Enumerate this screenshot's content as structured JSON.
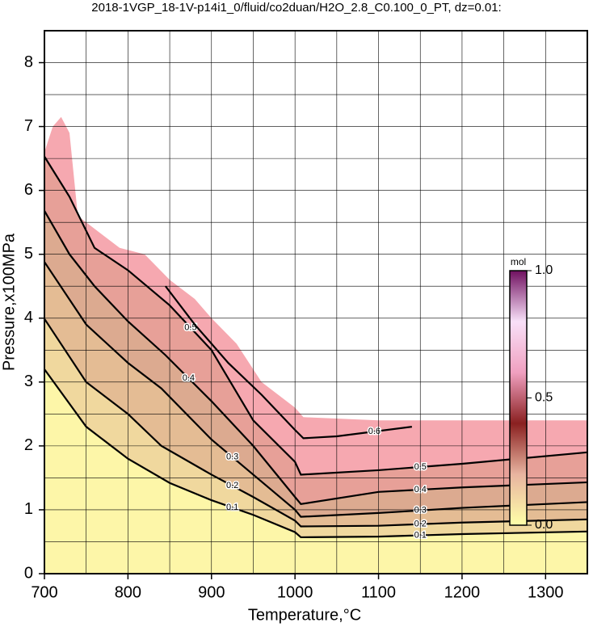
{
  "chart_data": {
    "type": "contour",
    "title": "2018-1VGP_18-1V-p14i1_0/fluid/co2duan/H2O_2.8_C0.100_0_PT, dz=0.01:",
    "xlabel": "Temperature,°C",
    "ylabel": "Pressure,x100MPa",
    "xlim": [
      700,
      1350
    ],
    "ylim": [
      0,
      8.5
    ],
    "xticks": [
      700,
      800,
      900,
      1000,
      1100,
      1200,
      1300
    ],
    "yticks": [
      0,
      1,
      2,
      3,
      4,
      5,
      6,
      7,
      8
    ],
    "xminorticks": [
      750,
      850,
      950,
      1050,
      1150,
      1250,
      1350
    ],
    "yminorticks": [
      0.5,
      1.5,
      2.5,
      3.5,
      4.5,
      5.5,
      6.5,
      7.5
    ],
    "grid": true,
    "domain": {
      "color": "#f6a8b0",
      "x": [
        700,
        710,
        720,
        730,
        740,
        760,
        790,
        820,
        850,
        880,
        900,
        930,
        960,
        1000,
        1010,
        1100,
        1350,
        1350,
        700
      ],
      "y": [
        6.6,
        7.0,
        7.15,
        6.9,
        5.6,
        5.4,
        5.1,
        5.0,
        4.6,
        4.3,
        4.0,
        3.6,
        3.0,
        2.6,
        2.45,
        2.4,
        2.4,
        0,
        0
      ]
    },
    "contours": [
      {
        "level": 0.5,
        "fill": "#e7a098",
        "x": [
          700,
          730,
          760,
          800,
          850,
          900,
          950,
          1000,
          1007,
          1100,
          1200,
          1350
        ],
        "y": [
          6.53,
          5.9,
          5.1,
          4.75,
          4.2,
          3.5,
          2.4,
          1.75,
          1.55,
          1.62,
          1.72,
          1.9
        ]
      },
      {
        "level": 0.4,
        "fill": "#dcaa90",
        "x": [
          700,
          730,
          760,
          800,
          845,
          900,
          950,
          1000,
          1007,
          1100,
          1200,
          1350
        ],
        "y": [
          5.68,
          5.0,
          4.5,
          3.95,
          3.42,
          2.7,
          2.0,
          1.2,
          1.09,
          1.28,
          1.35,
          1.43
        ]
      },
      {
        "level": 0.3,
        "fill": "#e4bc94",
        "x": [
          700,
          750,
          800,
          840,
          900,
          950,
          1000,
          1007,
          1100,
          1200,
          1350
        ],
        "y": [
          4.88,
          3.9,
          3.3,
          2.9,
          2.1,
          1.55,
          1.0,
          0.89,
          0.95,
          1.03,
          1.12
        ]
      },
      {
        "level": 0.2,
        "fill": "#f0d89e",
        "x": [
          700,
          750,
          800,
          840,
          900,
          950,
          1000,
          1007,
          1100,
          1200,
          1350
        ],
        "y": [
          3.99,
          3.0,
          2.5,
          2.0,
          1.55,
          1.2,
          0.83,
          0.74,
          0.75,
          0.8,
          0.85
        ]
      },
      {
        "level": 0.1,
        "fill": "#fdf6a8",
        "x": [
          700,
          750,
          800,
          850,
          900,
          950,
          1000,
          1007,
          1100,
          1200,
          1350
        ],
        "y": [
          3.2,
          2.3,
          1.8,
          1.42,
          1.15,
          0.92,
          0.65,
          0.57,
          0.58,
          0.62,
          0.66
        ]
      },
      {
        "level": 0.6,
        "x": [
          845,
          880,
          920,
          960,
          1000,
          1010,
          1050,
          1140
        ],
        "y": [
          4.5,
          3.9,
          3.3,
          2.8,
          2.25,
          2.12,
          2.15,
          2.3
        ]
      }
    ],
    "colorbar": {
      "title": "mol",
      "lim": [
        0,
        1
      ],
      "ticks": [
        {
          "value": 0,
          "label": "0.0"
        },
        0.5,
        {
          "value": 1,
          "label": "1.0"
        }
      ],
      "colors": [
        "#ffffa8",
        "#e8b4a0",
        "#8a2020",
        "#f0a0c0",
        "#f8e0f8",
        "#701060"
      ]
    }
  }
}
